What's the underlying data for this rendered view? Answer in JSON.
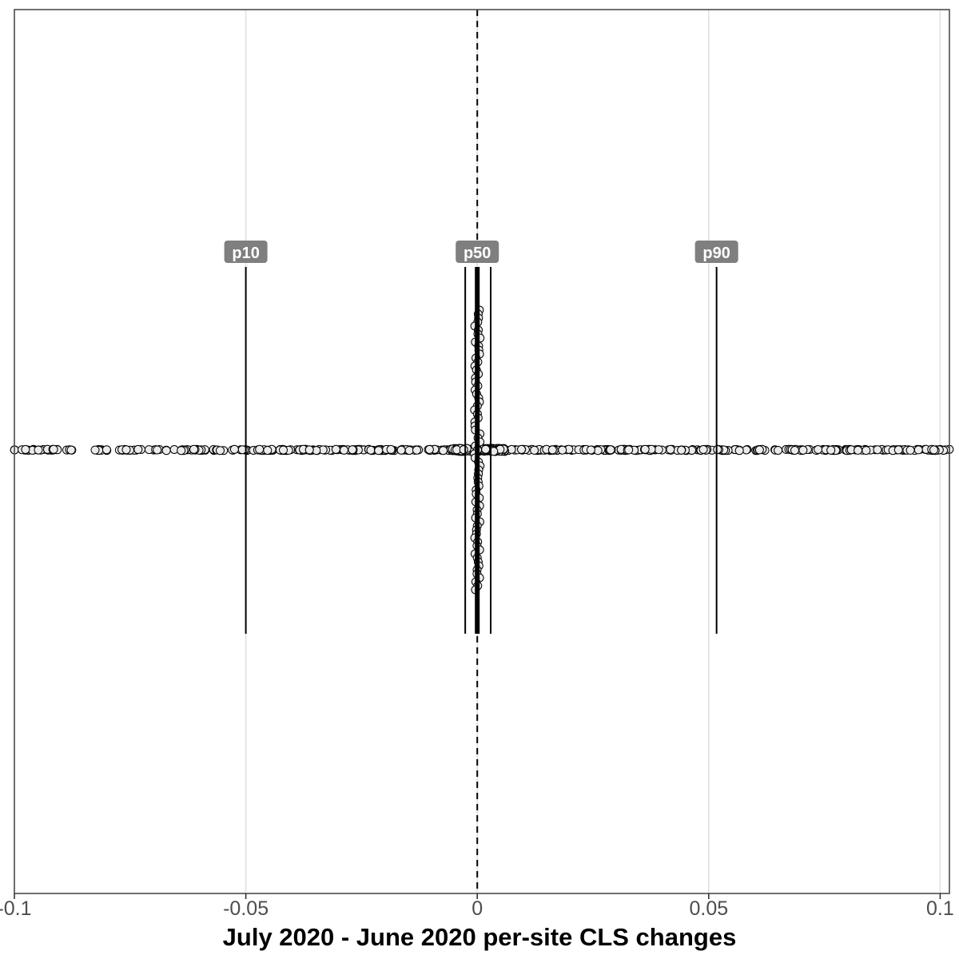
{
  "chart_data": {
    "type": "scatter",
    "title": "",
    "xlabel": "July 2020 - June 2020 per-site CLS changes",
    "ylabel": "",
    "xlim": [
      -0.1,
      0.102
    ],
    "x_ticks": [
      -0.1,
      -0.05,
      0,
      0.05,
      0.1
    ],
    "x_tick_labels": [
      "-0.1",
      "-0.05",
      "0",
      "0.05",
      "0.1"
    ],
    "grid": "vertical major lines",
    "reference_line": {
      "x": 0,
      "style": "dashed"
    },
    "percentiles": [
      {
        "label": "p10",
        "x": -0.05
      },
      {
        "label": "p50",
        "x": 0
      },
      {
        "label": "p90",
        "x": 0.0517
      }
    ],
    "interval_lines": [
      -0.0026,
      0.0029
    ],
    "points": "per-site CLS change values spread along the center line, densely stacked near 0",
    "colors": {
      "point_fill": "#ebebeb",
      "point_stroke": "#000000",
      "label_bg": "#7f7f7f",
      "grid": "#e0e0e0",
      "panel_border": "#4d4d4d"
    }
  }
}
